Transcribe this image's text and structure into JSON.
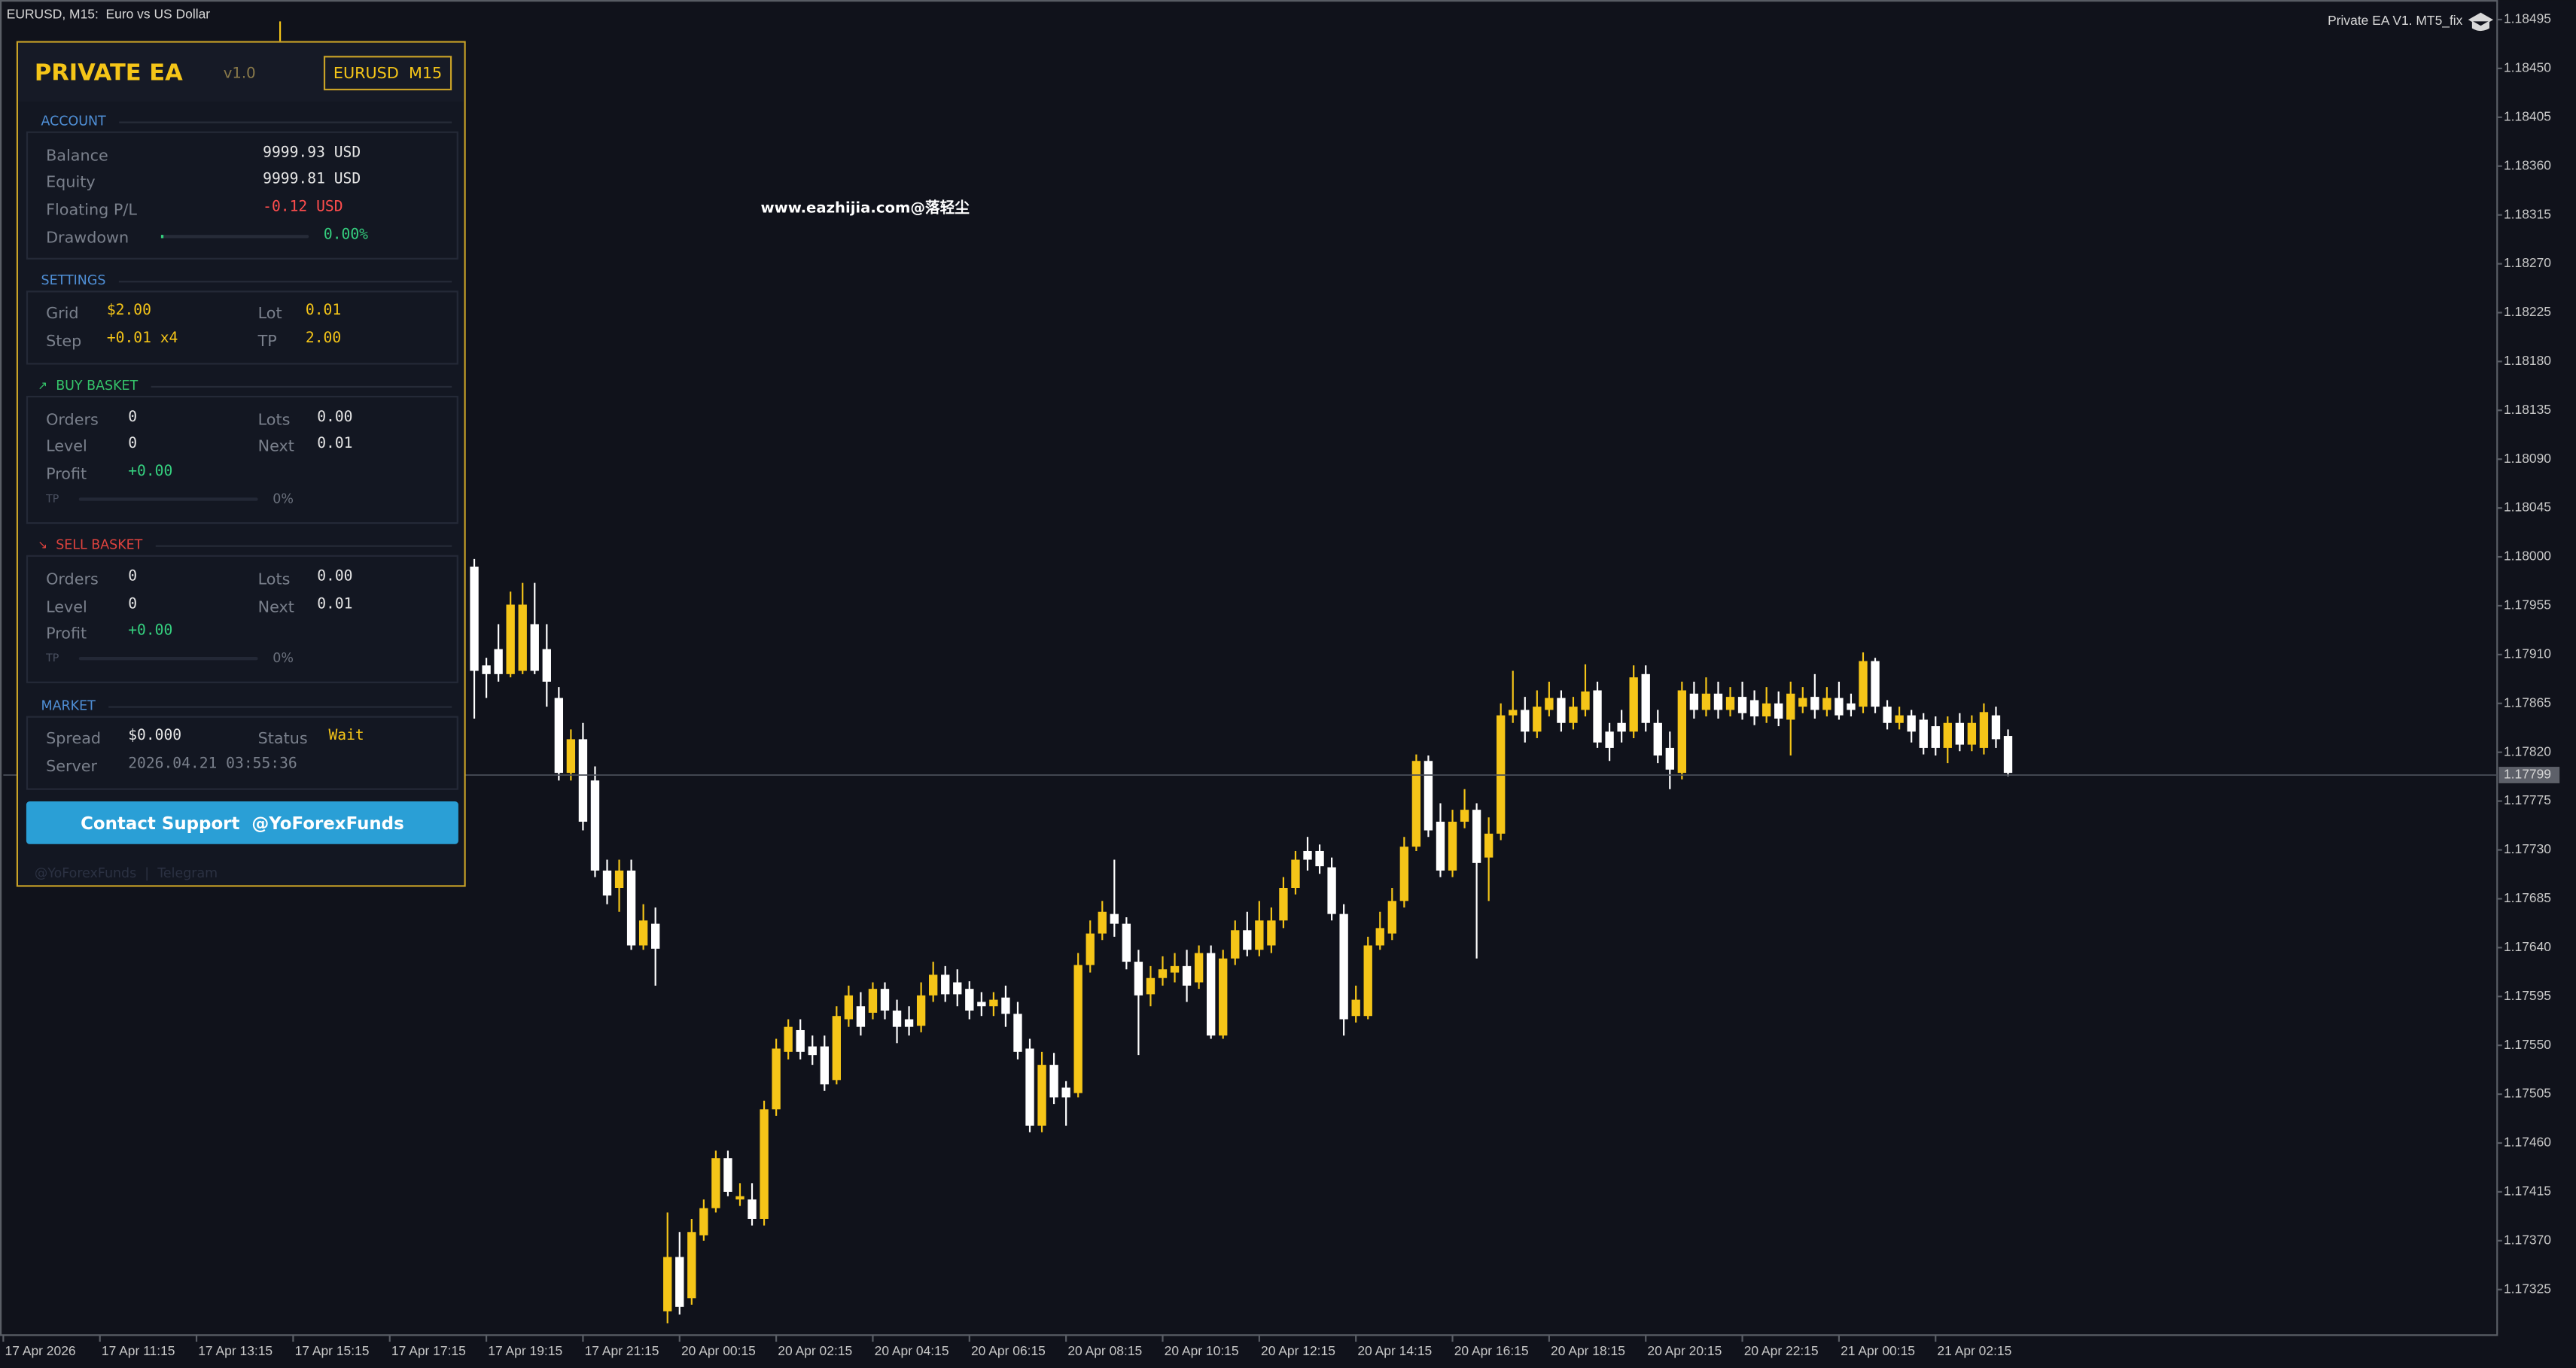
{
  "window": {
    "symbol_label": "EURUSD, M15:  Euro vs US Dollar",
    "ea_label": "Private EA V1. MT5_fix",
    "watermark": "www.eazhijia.com@落轻尘"
  },
  "chart_data": {
    "type": "candlestick",
    "x": [
      39,
      40,
      41,
      42,
      43,
      44,
      45,
      46,
      47,
      48,
      49,
      50,
      51,
      52,
      53,
      54,
      55,
      56,
      57,
      58,
      59,
      60,
      61,
      62,
      63,
      64,
      65,
      66,
      67,
      68,
      69,
      70,
      71,
      72,
      73,
      74,
      75,
      76,
      77,
      78,
      79,
      80,
      81,
      82,
      83,
      84,
      85,
      86,
      87,
      88,
      89,
      90,
      91,
      92,
      93,
      94,
      95,
      96,
      97,
      98,
      99,
      100,
      101,
      102,
      103,
      104,
      105,
      106,
      107,
      108,
      109,
      110,
      111,
      112,
      113,
      114,
      115,
      116,
      117,
      118,
      119,
      120,
      121,
      122,
      123,
      124,
      125,
      126,
      127,
      128,
      129,
      130,
      131,
      132,
      133,
      134,
      135,
      136,
      137,
      138,
      139,
      140,
      141,
      142,
      143,
      144,
      145,
      146,
      147,
      148,
      149,
      150,
      151,
      152,
      153,
      154,
      155,
      156,
      157,
      158,
      159,
      160,
      161,
      162,
      163,
      164,
      165,
      166
    ],
    "open": [
      1.17991,
      1.179,
      1.17915,
      1.17892,
      1.17895,
      1.17938,
      1.17915,
      1.1787,
      1.17801,
      1.17832,
      1.17794,
      1.17711,
      1.17695,
      1.17711,
      1.17642,
      1.17662,
      1.17305,
      1.17355,
      1.17317,
      1.17375,
      1.174,
      1.17446,
      1.17408,
      1.17408,
      1.1739,
      1.17491,
      1.17544,
      1.17564,
      1.17549,
      1.17549,
      1.17518,
      1.17574,
      1.17586,
      1.1758,
      1.17602,
      1.17582,
      1.17574,
      1.17568,
      1.17596,
      1.17615,
      1.17608,
      1.17602,
      1.1759,
      1.17586,
      1.17594,
      1.17579,
      1.17547,
      1.17476,
      1.17532,
      1.17511,
      1.17506,
      1.17624,
      1.17653,
      1.17671,
      1.17662,
      1.17627,
      1.17597,
      1.17612,
      1.17617,
      1.17623,
      1.17608,
      1.17635,
      1.17559,
      1.1763,
      1.17656,
      1.17638,
      1.17642,
      1.17665,
      1.17695,
      1.17729,
      1.17729,
      1.17714,
      1.17671,
      1.17577,
      1.17577,
      1.17642,
      1.17653,
      1.17683,
      1.17733,
      1.17812,
      1.17756,
      1.17711,
      1.17756,
      1.17767,
      1.17723,
      1.17745,
      1.17854,
      1.17859,
      1.17839,
      1.17859,
      1.1787,
      1.17847,
      1.17859,
      1.17877,
      1.17839,
      1.17847,
      1.17839,
      1.17892,
      1.17847,
      1.17824,
      1.17801,
      1.17874,
      1.17859,
      1.17874,
      1.17859,
      1.17871,
      1.17868,
      1.17853,
      1.17865,
      1.1785,
      1.17862,
      1.17871,
      1.17859,
      1.1787,
      1.17865,
      1.17862,
      1.17904,
      1.17862,
      1.17847,
      1.17854,
      1.1785,
      1.17844,
      1.17824,
      1.17847,
      1.17827,
      1.17824,
      1.17854,
      1.17835
    ],
    "high": [
      1.17998,
      1.17907,
      1.17938,
      1.17968,
      1.17976,
      1.17976,
      1.17938,
      1.1788,
      1.17841,
      1.17847,
      1.17807,
      1.17721,
      1.17721,
      1.17721,
      1.1768,
      1.17677,
      1.17396,
      1.17378,
      1.1739,
      1.17408,
      1.17453,
      1.17453,
      1.17423,
      1.17423,
      1.17499,
      1.17556,
      1.17574,
      1.17574,
      1.17559,
      1.17559,
      1.17586,
      1.17605,
      1.17599,
      1.17608,
      1.17608,
      1.17592,
      1.17586,
      1.17608,
      1.17627,
      1.17623,
      1.1762,
      1.17609,
      1.17599,
      1.17599,
      1.17605,
      1.1759,
      1.17556,
      1.17544,
      1.17543,
      1.17517,
      1.17635,
      1.17665,
      1.17683,
      1.17721,
      1.17668,
      1.17638,
      1.17623,
      1.17632,
      1.17635,
      1.17638,
      1.17642,
      1.17642,
      1.17638,
      1.17665,
      1.17673,
      1.17683,
      1.17677,
      1.17705,
      1.17729,
      1.17742,
      1.17735,
      1.17723,
      1.1768,
      1.17605,
      1.1765,
      1.17673,
      1.17695,
      1.17742,
      1.17818,
      1.17817,
      1.17773,
      1.17767,
      1.17786,
      1.17773,
      1.1776,
      1.17865,
      1.17895,
      1.17871,
      1.17877,
      1.17885,
      1.17877,
      1.17871,
      1.17901,
      1.17885,
      1.17847,
      1.17859,
      1.179,
      1.179,
      1.17859,
      1.17839,
      1.17885,
      1.17885,
      1.17889,
      1.17885,
      1.1788,
      1.17885,
      1.17877,
      1.1788,
      1.17876,
      1.17885,
      1.1788,
      1.17892,
      1.1788,
      1.17885,
      1.17874,
      1.17912,
      1.17907,
      1.17868,
      1.17862,
      1.17859,
      1.17856,
      1.17853,
      1.17853,
      1.17856,
      1.17854,
      1.17865,
      1.17862,
      1.17841
    ],
    "low": [
      1.17851,
      1.1787,
      1.17885,
      1.17889,
      1.17892,
      1.17892,
      1.17862,
      1.17794,
      1.17794,
      1.17748,
      1.17705,
      1.1768,
      1.17673,
      1.17638,
      1.17638,
      1.17605,
      1.17294,
      1.17302,
      1.17311,
      1.1737,
      1.17396,
      1.17411,
      1.17402,
      1.17384,
      1.17384,
      1.17485,
      1.17537,
      1.17537,
      1.17532,
      1.17508,
      1.17514,
      1.17567,
      1.17559,
      1.17574,
      1.17574,
      1.17552,
      1.17559,
      1.17562,
      1.1759,
      1.1759,
      1.17586,
      1.17574,
      1.17577,
      1.17577,
      1.17567,
      1.17537,
      1.1747,
      1.1747,
      1.17496,
      1.17476,
      1.17502,
      1.17617,
      1.17647,
      1.1765,
      1.1762,
      1.17541,
      1.17586,
      1.17605,
      1.17608,
      1.1759,
      1.17602,
      1.17556,
      1.17556,
      1.17624,
      1.17632,
      1.17632,
      1.17635,
      1.17658,
      1.17689,
      1.17711,
      1.17708,
      1.17665,
      1.17559,
      1.17571,
      1.17574,
      1.17638,
      1.17647,
      1.17677,
      1.17729,
      1.17742,
      1.17705,
      1.17705,
      1.1775,
      1.1763,
      1.17683,
      1.17739,
      1.17847,
      1.17829,
      1.17833,
      1.17853,
      1.17839,
      1.17841,
      1.17853,
      1.17824,
      1.17812,
      1.17829,
      1.17833,
      1.17839,
      1.1781,
      1.17786,
      1.17795,
      1.17851,
      1.17853,
      1.17851,
      1.17853,
      1.1785,
      1.17845,
      1.17847,
      1.17844,
      1.17817,
      1.17856,
      1.17851,
      1.17853,
      1.1785,
      1.17853,
      1.17856,
      1.17856,
      1.17841,
      1.17841,
      1.17829,
      1.17818,
      1.17817,
      1.1781,
      1.17821,
      1.17821,
      1.17818,
      1.17824,
      1.17798
    ],
    "close": [
      1.17895,
      1.17892,
      1.17892,
      1.17956,
      1.17956,
      1.17895,
      1.17885,
      1.17801,
      1.17832,
      1.17756,
      1.17711,
      1.17688,
      1.17711,
      1.17642,
      1.17665,
      1.17639,
      1.17355,
      1.17309,
      1.17378,
      1.174,
      1.17446,
      1.17415,
      1.17411,
      1.1739,
      1.17491,
      1.17547,
      1.17567,
      1.17544,
      1.17541,
      1.17514,
      1.17577,
      1.17596,
      1.17567,
      1.17602,
      1.17582,
      1.17567,
      1.17567,
      1.17596,
      1.17615,
      1.17597,
      1.17597,
      1.17582,
      1.17586,
      1.17592,
      1.17579,
      1.17544,
      1.17476,
      1.17532,
      1.17502,
      1.17502,
      1.17624,
      1.17653,
      1.17673,
      1.17662,
      1.17627,
      1.17596,
      1.17612,
      1.1762,
      1.17623,
      1.17605,
      1.17635,
      1.17559,
      1.1763,
      1.17656,
      1.17638,
      1.17665,
      1.17665,
      1.17695,
      1.17721,
      1.17721,
      1.17715,
      1.17671,
      1.17574,
      1.17592,
      1.17642,
      1.17658,
      1.17683,
      1.17733,
      1.17812,
      1.17748,
      1.17711,
      1.17756,
      1.17767,
      1.17718,
      1.17745,
      1.17854,
      1.17859,
      1.17839,
      1.17862,
      1.1787,
      1.17847,
      1.17862,
      1.17876,
      1.17829,
      1.17824,
      1.17839,
      1.17889,
      1.17847,
      1.17817,
      1.17804,
      1.17877,
      1.17859,
      1.17874,
      1.17859,
      1.17871,
      1.17856,
      1.17853,
      1.17865,
      1.17851,
      1.17874,
      1.1787,
      1.17859,
      1.1787,
      1.17854,
      1.17859,
      1.17904,
      1.17862,
      1.17847,
      1.17854,
      1.17839,
      1.17824,
      1.17824,
      1.17847,
      1.17827,
      1.17847,
      1.17857,
      1.17832,
      1.17801
    ],
    "up_color": "#f5c518",
    "down_color": "#ffffff",
    "xlim": [
      0,
      206.5
    ],
    "xticks": [
      {
        "value": 0,
        "label": "17 Apr 2026"
      },
      {
        "value": 8,
        "label": "17 Apr 11:15"
      },
      {
        "value": 16,
        "label": "17 Apr 13:15"
      },
      {
        "value": 24,
        "label": "17 Apr 15:15"
      },
      {
        "value": 32,
        "label": "17 Apr 17:15"
      },
      {
        "value": 40,
        "label": "17 Apr 19:15"
      },
      {
        "value": 48,
        "label": "17 Apr 21:15"
      },
      {
        "value": 56,
        "label": "20 Apr 00:15"
      },
      {
        "value": 64,
        "label": "20 Apr 02:15"
      },
      {
        "value": 72,
        "label": "20 Apr 04:15"
      },
      {
        "value": 80,
        "label": "20 Apr 06:15"
      },
      {
        "value": 88,
        "label": "20 Apr 08:15"
      },
      {
        "value": 96,
        "label": "20 Apr 10:15"
      },
      {
        "value": 104,
        "label": "20 Apr 12:15"
      },
      {
        "value": 112,
        "label": "20 Apr 14:15"
      },
      {
        "value": 120,
        "label": "20 Apr 16:15"
      },
      {
        "value": 128,
        "label": "20 Apr 18:15"
      },
      {
        "value": 136,
        "label": "20 Apr 20:15"
      },
      {
        "value": 144,
        "label": "20 Apr 22:15"
      },
      {
        "value": 152,
        "label": "21 Apr 00:15"
      },
      {
        "value": 160,
        "label": "21 Apr 02:15"
      }
    ],
    "ylim": [
      1.17283,
      1.18513
    ],
    "yticks": [
      1.18495,
      {
        "value": 1.1845,
        "label": "1.18450"
      },
      1.18405,
      {
        "value": 1.1836,
        "label": "1.18360"
      },
      1.18315,
      {
        "value": 1.1827,
        "label": "1.18270"
      },
      1.18225,
      {
        "value": 1.1818,
        "label": "1.18180"
      },
      1.18135,
      {
        "value": 1.1809,
        "label": "1.18090"
      },
      1.18045,
      {
        "value": 1.18,
        "label": "1.18000"
      },
      1.17955,
      {
        "value": 1.1791,
        "label": "1.17910"
      },
      1.17865,
      {
        "value": 1.1782,
        "label": "1.17820"
      },
      1.17775,
      {
        "value": 1.1773,
        "label": "1.17730"
      },
      1.17685,
      {
        "value": 1.1764,
        "label": "1.17640"
      },
      1.17595,
      {
        "value": 1.1755,
        "label": "1.17550"
      },
      1.17505,
      {
        "value": 1.1746,
        "label": "1.17460"
      },
      1.17415,
      {
        "value": 1.1737,
        "label": "1.17370"
      },
      1.17325
    ],
    "bid": 1.17799,
    "grid": false
  },
  "panel": {
    "title": "PRIVATE EA",
    "version": "v1.0",
    "symbol": "EURUSD  M15",
    "account": {
      "heading": "ACCOUNT",
      "rows": [
        [
          "Balance",
          "9999.93 USD"
        ],
        [
          "Equity",
          "9999.81 USD"
        ],
        [
          "Floating P/L",
          "-0.12 USD"
        ],
        [
          "Drawdown",
          "0.00%"
        ]
      ]
    },
    "settings": {
      "heading": "SETTINGS",
      "rows": [
        [
          "Grid",
          "$2.00",
          "Lot",
          "0.01"
        ],
        [
          "Step",
          "+0.01 x4",
          "TP",
          "2.00"
        ]
      ]
    },
    "buy_basket": {
      "heading": "BUY BASKET",
      "rows": [
        [
          "Orders",
          "0",
          "Lots",
          "0.00"
        ],
        [
          "Level",
          "0",
          "Next",
          "0.01"
        ],
        [
          "Profit",
          "+0.00"
        ]
      ],
      "tp_label": "TP",
      "tp_progress": "0%"
    },
    "sell_basket": {
      "heading": "SELL BASKET",
      "rows": [
        [
          "Orders",
          "0",
          "Lots",
          "0.00"
        ],
        [
          "Level",
          "0",
          "Next",
          "0.01"
        ],
        [
          "Profit",
          "+0.00"
        ]
      ],
      "tp_label": "TP",
      "tp_progress": "0%"
    },
    "market": {
      "heading": "MARKET",
      "rows": [
        [
          "Spread",
          "$0.000",
          "Status",
          "Wait"
        ],
        [
          "Server",
          "2026.04.21 03:55:36"
        ]
      ]
    },
    "button": "Contact Support  @YoForexFunds",
    "footer": "@YoForexFunds  |  Telegram"
  }
}
